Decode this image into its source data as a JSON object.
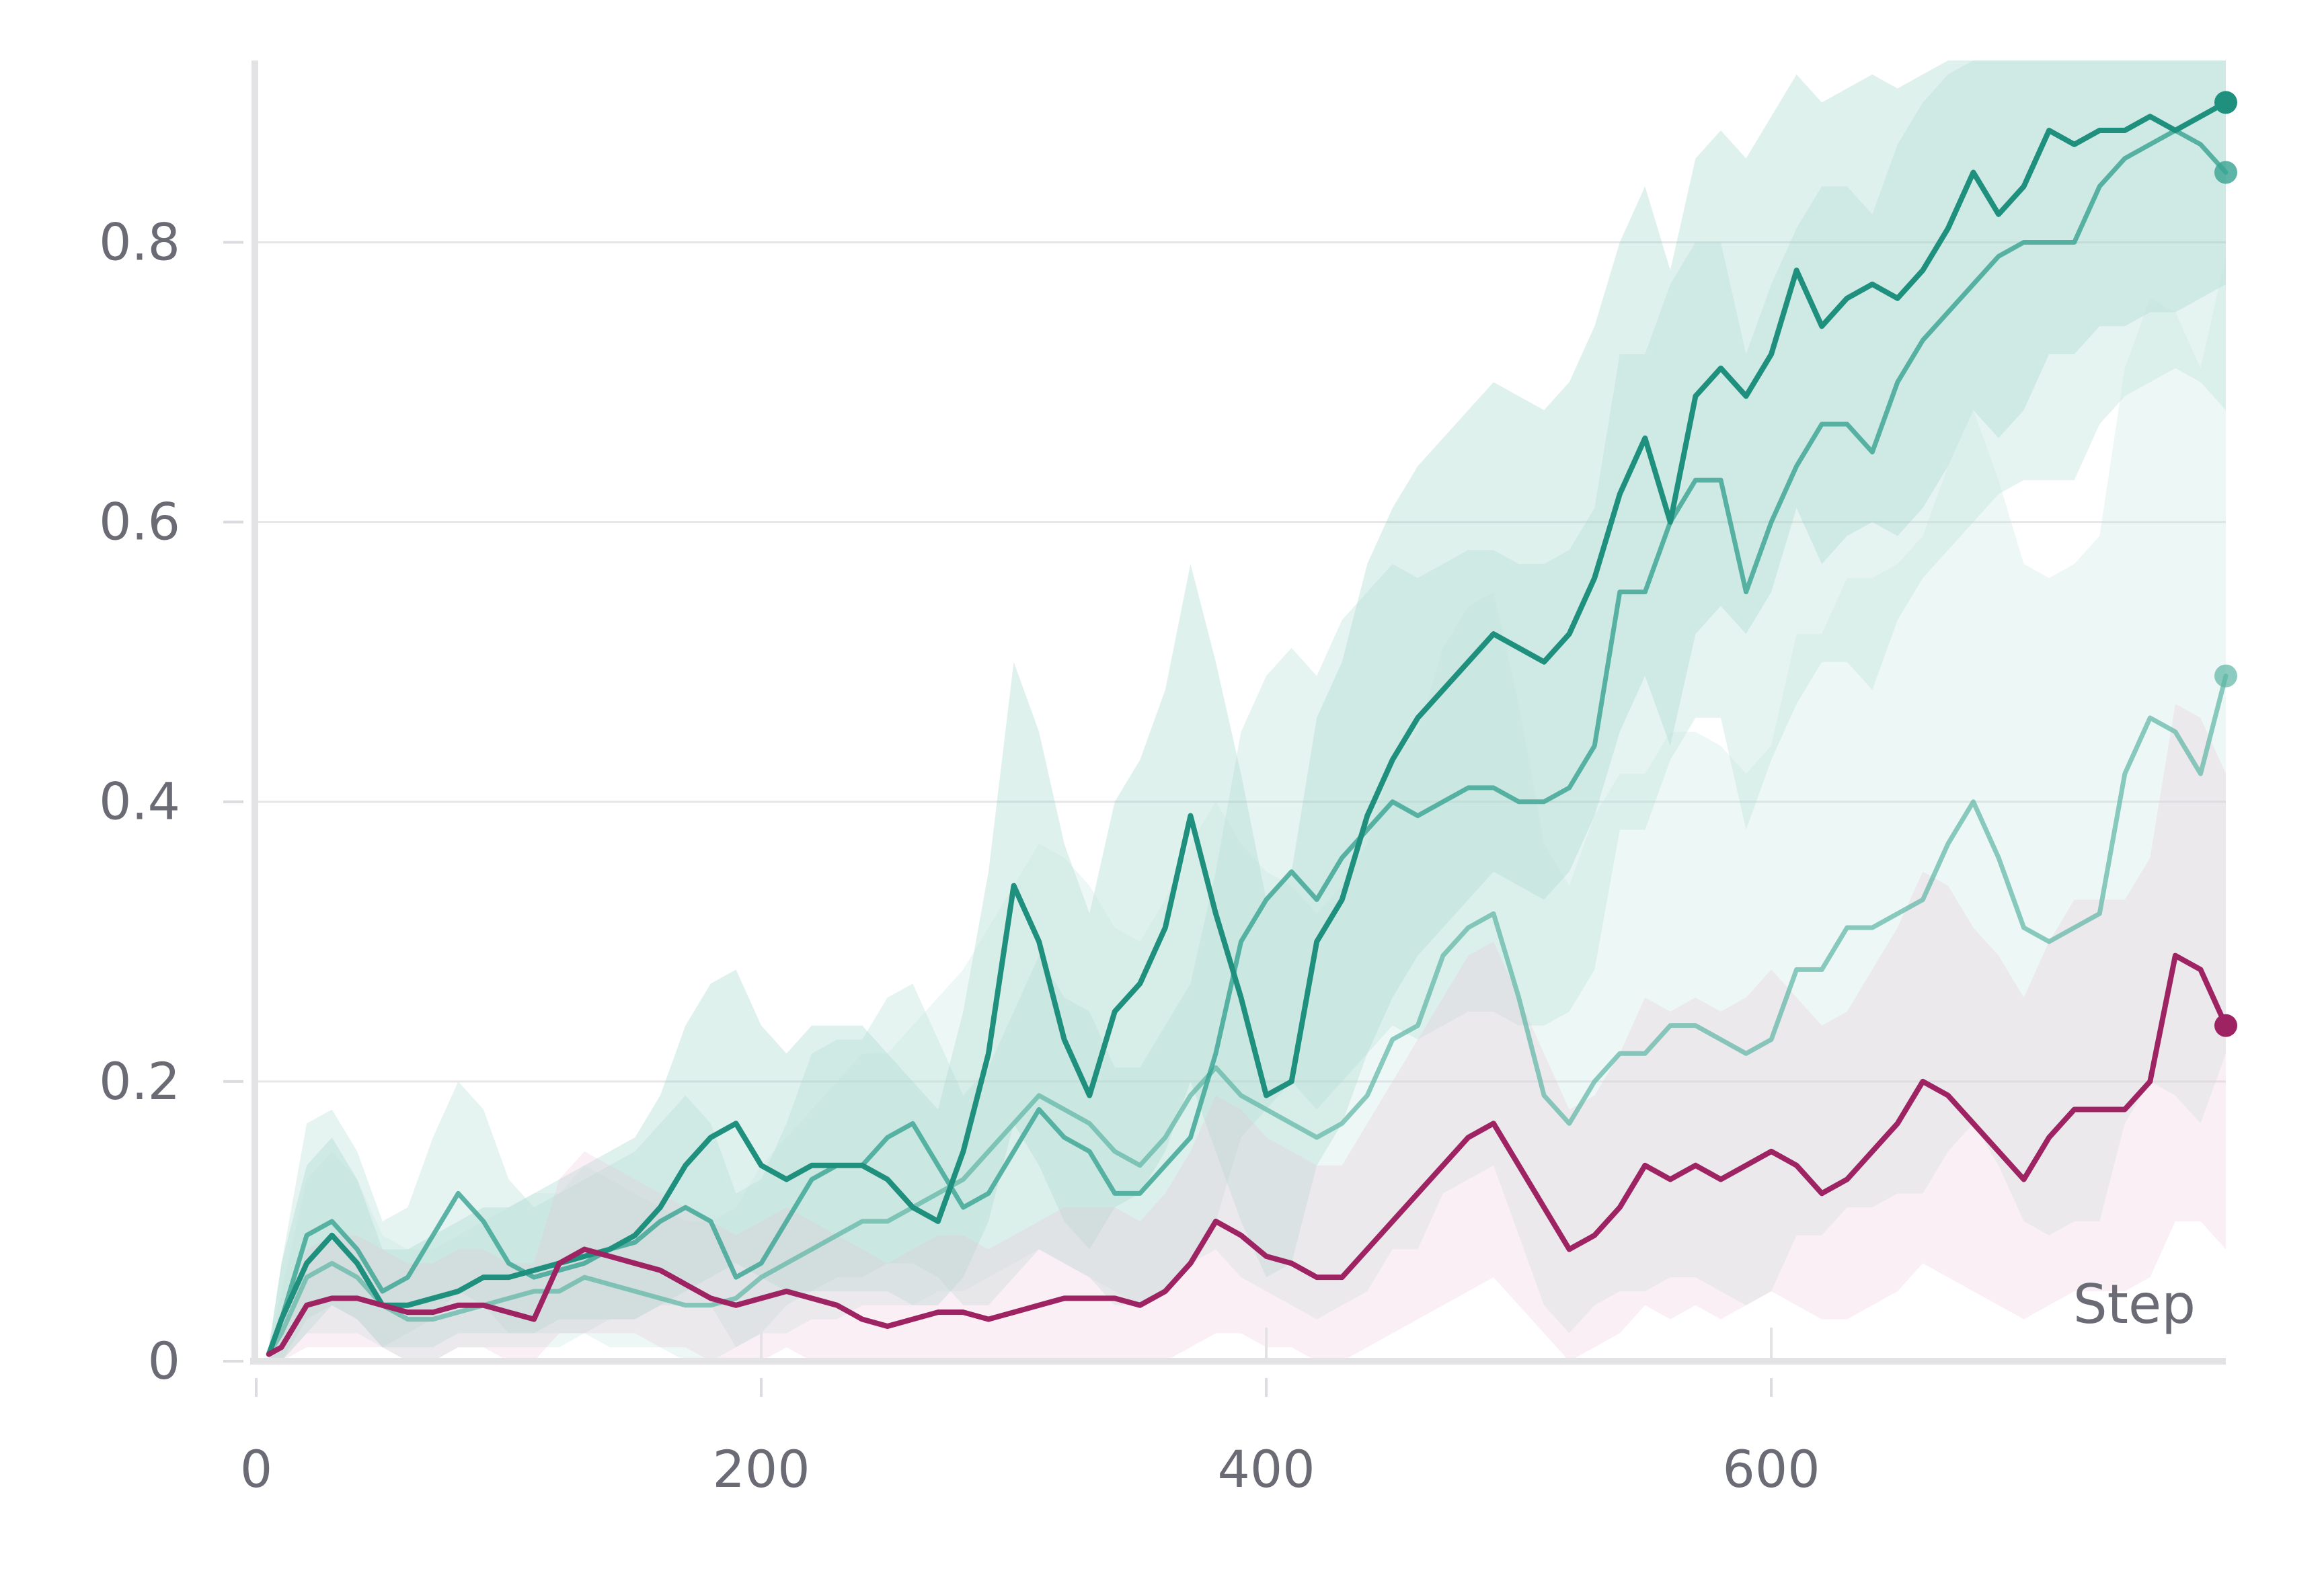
{
  "chart_data": {
    "type": "line",
    "title": "",
    "xlabel": "Step",
    "ylabel": "",
    "xlim": [
      0,
      780
    ],
    "ylim": [
      0,
      0.93
    ],
    "x_ticks": [
      0,
      200,
      400,
      600
    ],
    "x_tick_labels": [
      "0",
      "200",
      "400",
      "600"
    ],
    "y_ticks": [
      0,
      0.2,
      0.4,
      0.6,
      0.8
    ],
    "y_tick_labels": [
      "0",
      "0.2",
      "0.4",
      "0.6",
      "0.8"
    ],
    "grid": "horizontal",
    "legend": "none",
    "x": [
      5,
      10,
      20,
      30,
      40,
      50,
      60,
      70,
      80,
      90,
      100,
      110,
      120,
      130,
      140,
      150,
      160,
      170,
      180,
      190,
      200,
      210,
      220,
      230,
      240,
      250,
      260,
      270,
      280,
      290,
      300,
      310,
      320,
      330,
      340,
      350,
      360,
      370,
      380,
      390,
      400,
      410,
      420,
      430,
      440,
      450,
      460,
      470,
      480,
      490,
      500,
      510,
      520,
      530,
      540,
      550,
      560,
      570,
      580,
      590,
      600,
      610,
      620,
      630,
      640,
      650,
      660,
      670,
      680,
      690,
      700,
      710,
      720,
      730,
      740,
      750,
      760,
      770,
      780
    ],
    "series": [
      {
        "color": "#1f8f7e",
        "opacity": 1.0,
        "values": [
          0.005,
          0.03,
          0.07,
          0.09,
          0.07,
          0.04,
          0.04,
          0.045,
          0.05,
          0.06,
          0.06,
          0.065,
          0.07,
          0.075,
          0.08,
          0.09,
          0.11,
          0.14,
          0.16,
          0.17,
          0.14,
          0.13,
          0.14,
          0.14,
          0.14,
          0.13,
          0.11,
          0.1,
          0.15,
          0.22,
          0.34,
          0.3,
          0.23,
          0.19,
          0.25,
          0.27,
          0.31,
          0.39,
          0.32,
          0.26,
          0.19,
          0.2,
          0.3,
          0.33,
          0.39,
          0.43,
          0.46,
          0.48,
          0.5,
          0.52,
          0.51,
          0.5,
          0.52,
          0.56,
          0.62,
          0.66,
          0.6,
          0.69,
          0.71,
          0.69,
          0.72,
          0.78,
          0.74,
          0.76,
          0.77,
          0.76,
          0.78,
          0.81,
          0.85,
          0.82,
          0.84,
          0.88,
          0.87,
          0.88,
          0.88,
          0.89,
          0.88,
          0.89,
          0.9
        ]
      },
      {
        "color": "#3aa594",
        "opacity": 0.82,
        "values": [
          0.005,
          0.03,
          0.09,
          0.1,
          0.08,
          0.05,
          0.06,
          0.09,
          0.12,
          0.1,
          0.07,
          0.06,
          0.065,
          0.07,
          0.08,
          0.085,
          0.1,
          0.11,
          0.1,
          0.06,
          0.07,
          0.1,
          0.13,
          0.14,
          0.14,
          0.16,
          0.17,
          0.14,
          0.11,
          0.12,
          0.15,
          0.18,
          0.16,
          0.15,
          0.12,
          0.12,
          0.14,
          0.16,
          0.22,
          0.3,
          0.33,
          0.35,
          0.33,
          0.36,
          0.38,
          0.4,
          0.39,
          0.4,
          0.41,
          0.41,
          0.4,
          0.4,
          0.41,
          0.44,
          0.55,
          0.55,
          0.6,
          0.63,
          0.63,
          0.55,
          0.6,
          0.64,
          0.67,
          0.67,
          0.65,
          0.7,
          0.73,
          0.75,
          0.77,
          0.79,
          0.8,
          0.8,
          0.8,
          0.84,
          0.86,
          0.87,
          0.88,
          0.87,
          0.85
        ]
      },
      {
        "color": "#5db5a5",
        "opacity": 0.7,
        "values": [
          0.005,
          0.02,
          0.06,
          0.07,
          0.06,
          0.04,
          0.03,
          0.03,
          0.035,
          0.04,
          0.045,
          0.05,
          0.05,
          0.06,
          0.055,
          0.05,
          0.045,
          0.04,
          0.04,
          0.045,
          0.06,
          0.07,
          0.08,
          0.09,
          0.1,
          0.1,
          0.11,
          0.12,
          0.13,
          0.15,
          0.17,
          0.19,
          0.18,
          0.17,
          0.15,
          0.14,
          0.16,
          0.19,
          0.21,
          0.19,
          0.18,
          0.17,
          0.16,
          0.17,
          0.19,
          0.23,
          0.24,
          0.29,
          0.31,
          0.32,
          0.26,
          0.19,
          0.17,
          0.2,
          0.22,
          0.22,
          0.24,
          0.24,
          0.23,
          0.22,
          0.23,
          0.28,
          0.28,
          0.31,
          0.31,
          0.32,
          0.33,
          0.37,
          0.4,
          0.36,
          0.31,
          0.3,
          0.31,
          0.32,
          0.42,
          0.46,
          0.45,
          0.42,
          0.49
        ]
      },
      {
        "color": "#9e2363",
        "opacity": 1.0,
        "values": [
          0.005,
          0.01,
          0.04,
          0.045,
          0.045,
          0.04,
          0.035,
          0.035,
          0.04,
          0.04,
          0.035,
          0.03,
          0.07,
          0.08,
          0.075,
          0.07,
          0.065,
          0.055,
          0.045,
          0.04,
          0.045,
          0.05,
          0.045,
          0.04,
          0.03,
          0.025,
          0.03,
          0.035,
          0.035,
          0.03,
          0.035,
          0.04,
          0.045,
          0.045,
          0.045,
          0.04,
          0.05,
          0.07,
          0.1,
          0.09,
          0.075,
          0.07,
          0.06,
          0.06,
          0.08,
          0.1,
          0.12,
          0.14,
          0.16,
          0.17,
          0.14,
          0.11,
          0.08,
          0.09,
          0.11,
          0.14,
          0.13,
          0.14,
          0.13,
          0.14,
          0.15,
          0.14,
          0.12,
          0.13,
          0.15,
          0.17,
          0.2,
          0.19,
          0.17,
          0.15,
          0.13,
          0.16,
          0.18,
          0.18,
          0.18,
          0.2,
          0.29,
          0.28,
          0.24
        ]
      }
    ],
    "bands": [
      {
        "series_index": 0,
        "color": "#8ccdc0",
        "lower": [
          0.0,
          0.0,
          0.02,
          0.04,
          0.03,
          0.01,
          0.01,
          0.01,
          0.02,
          0.02,
          0.02,
          0.02,
          0.03,
          0.03,
          0.03,
          0.03,
          0.04,
          0.05,
          0.06,
          0.07,
          0.06,
          0.05,
          0.05,
          0.05,
          0.05,
          0.05,
          0.04,
          0.04,
          0.06,
          0.1,
          0.17,
          0.14,
          0.1,
          0.08,
          0.11,
          0.12,
          0.15,
          0.2,
          0.15,
          0.1,
          0.06,
          0.07,
          0.14,
          0.17,
          0.22,
          0.26,
          0.29,
          0.31,
          0.33,
          0.35,
          0.34,
          0.33,
          0.35,
          0.39,
          0.45,
          0.49,
          0.44,
          0.52,
          0.54,
          0.52,
          0.55,
          0.61,
          0.57,
          0.59,
          0.6,
          0.59,
          0.61,
          0.64,
          0.68,
          0.66,
          0.68,
          0.72,
          0.72,
          0.74,
          0.74,
          0.75,
          0.75,
          0.76,
          0.77
        ],
        "upper": [
          0.01,
          0.07,
          0.14,
          0.16,
          0.13,
          0.08,
          0.08,
          0.09,
          0.1,
          0.11,
          0.11,
          0.12,
          0.13,
          0.14,
          0.15,
          0.16,
          0.19,
          0.24,
          0.27,
          0.28,
          0.24,
          0.22,
          0.24,
          0.24,
          0.24,
          0.22,
          0.2,
          0.18,
          0.25,
          0.35,
          0.5,
          0.45,
          0.37,
          0.32,
          0.4,
          0.43,
          0.48,
          0.57,
          0.5,
          0.42,
          0.33,
          0.35,
          0.46,
          0.5,
          0.57,
          0.61,
          0.64,
          0.66,
          0.68,
          0.7,
          0.69,
          0.68,
          0.7,
          0.74,
          0.8,
          0.84,
          0.78,
          0.86,
          0.88,
          0.86,
          0.89,
          0.92,
          0.9,
          0.91,
          0.92,
          0.91,
          0.92,
          0.93,
          0.93,
          0.93,
          0.93,
          0.93,
          0.93,
          0.93,
          0.93,
          0.93,
          0.93,
          0.93,
          0.93
        ]
      },
      {
        "series_index": 1,
        "color": "#a6d8ce",
        "lower": [
          0.0,
          0.0,
          0.03,
          0.04,
          0.03,
          0.01,
          0.02,
          0.03,
          0.05,
          0.04,
          0.02,
          0.02,
          0.02,
          0.02,
          0.03,
          0.03,
          0.04,
          0.04,
          0.04,
          0.01,
          0.02,
          0.04,
          0.05,
          0.06,
          0.06,
          0.07,
          0.07,
          0.06,
          0.04,
          0.04,
          0.06,
          0.08,
          0.07,
          0.06,
          0.04,
          0.04,
          0.05,
          0.07,
          0.1,
          0.16,
          0.18,
          0.2,
          0.18,
          0.2,
          0.22,
          0.24,
          0.23,
          0.24,
          0.25,
          0.25,
          0.24,
          0.24,
          0.25,
          0.28,
          0.38,
          0.38,
          0.43,
          0.46,
          0.46,
          0.38,
          0.43,
          0.47,
          0.5,
          0.5,
          0.48,
          0.53,
          0.56,
          0.58,
          0.6,
          0.62,
          0.63,
          0.63,
          0.63,
          0.67,
          0.69,
          0.7,
          0.71,
          0.7,
          0.68
        ],
        "upper": [
          0.01,
          0.07,
          0.17,
          0.18,
          0.15,
          0.1,
          0.11,
          0.16,
          0.2,
          0.18,
          0.13,
          0.11,
          0.12,
          0.13,
          0.14,
          0.15,
          0.17,
          0.19,
          0.17,
          0.12,
          0.13,
          0.17,
          0.22,
          0.23,
          0.23,
          0.26,
          0.27,
          0.23,
          0.19,
          0.21,
          0.25,
          0.29,
          0.26,
          0.25,
          0.21,
          0.21,
          0.24,
          0.27,
          0.35,
          0.45,
          0.49,
          0.51,
          0.49,
          0.53,
          0.55,
          0.57,
          0.56,
          0.57,
          0.58,
          0.58,
          0.57,
          0.57,
          0.58,
          0.61,
          0.72,
          0.72,
          0.77,
          0.8,
          0.8,
          0.72,
          0.77,
          0.81,
          0.84,
          0.84,
          0.82,
          0.87,
          0.9,
          0.92,
          0.93,
          0.93,
          0.93,
          0.93,
          0.93,
          0.93,
          0.93,
          0.93,
          0.93,
          0.93,
          0.93
        ]
      },
      {
        "series_index": 2,
        "color": "#bfe3dc",
        "lower": [
          0.0,
          0.0,
          0.02,
          0.02,
          0.02,
          0.01,
          0.0,
          0.0,
          0.01,
          0.01,
          0.01,
          0.01,
          0.01,
          0.02,
          0.01,
          0.01,
          0.01,
          0.0,
          0.0,
          0.01,
          0.02,
          0.02,
          0.03,
          0.03,
          0.04,
          0.04,
          0.04,
          0.05,
          0.05,
          0.06,
          0.07,
          0.08,
          0.07,
          0.06,
          0.05,
          0.04,
          0.05,
          0.07,
          0.08,
          0.06,
          0.05,
          0.04,
          0.03,
          0.04,
          0.05,
          0.08,
          0.08,
          0.12,
          0.13,
          0.14,
          0.09,
          0.04,
          0.02,
          0.04,
          0.05,
          0.05,
          0.06,
          0.06,
          0.05,
          0.04,
          0.05,
          0.09,
          0.09,
          0.11,
          0.11,
          0.12,
          0.12,
          0.15,
          0.17,
          0.14,
          0.1,
          0.09,
          0.1,
          0.1,
          0.17,
          0.2,
          0.19,
          0.17,
          0.22
        ],
        "upper": [
          0.01,
          0.05,
          0.13,
          0.15,
          0.13,
          0.09,
          0.08,
          0.08,
          0.09,
          0.1,
          0.11,
          0.12,
          0.12,
          0.14,
          0.13,
          0.12,
          0.11,
          0.1,
          0.1,
          0.11,
          0.14,
          0.16,
          0.18,
          0.2,
          0.22,
          0.22,
          0.24,
          0.26,
          0.28,
          0.31,
          0.34,
          0.37,
          0.36,
          0.34,
          0.31,
          0.3,
          0.33,
          0.37,
          0.4,
          0.37,
          0.35,
          0.34,
          0.32,
          0.34,
          0.37,
          0.43,
          0.45,
          0.51,
          0.54,
          0.55,
          0.47,
          0.37,
          0.34,
          0.39,
          0.42,
          0.42,
          0.45,
          0.45,
          0.44,
          0.42,
          0.44,
          0.52,
          0.52,
          0.56,
          0.56,
          0.57,
          0.59,
          0.64,
          0.68,
          0.63,
          0.57,
          0.56,
          0.57,
          0.59,
          0.71,
          0.76,
          0.75,
          0.71,
          0.79
        ]
      },
      {
        "series_index": 3,
        "color": "#e8c6d8",
        "lower": [
          0.0,
          0.0,
          0.01,
          0.01,
          0.01,
          0.01,
          0.0,
          0.0,
          0.01,
          0.01,
          0.0,
          0.0,
          0.02,
          0.02,
          0.02,
          0.02,
          0.01,
          0.01,
          0.0,
          0.0,
          0.0,
          0.01,
          0.0,
          0.0,
          0.0,
          0.0,
          0.0,
          0.0,
          0.0,
          0.0,
          0.0,
          0.0,
          0.0,
          0.0,
          0.0,
          0.0,
          0.0,
          0.01,
          0.02,
          0.02,
          0.01,
          0.01,
          0.0,
          0.0,
          0.01,
          0.02,
          0.03,
          0.04,
          0.05,
          0.06,
          0.04,
          0.02,
          0.0,
          0.01,
          0.02,
          0.04,
          0.03,
          0.04,
          0.03,
          0.04,
          0.05,
          0.04,
          0.03,
          0.03,
          0.04,
          0.05,
          0.07,
          0.06,
          0.05,
          0.04,
          0.03,
          0.04,
          0.05,
          0.05,
          0.05,
          0.06,
          0.1,
          0.1,
          0.08
        ],
        "upper": [
          0.01,
          0.03,
          0.08,
          0.09,
          0.09,
          0.08,
          0.07,
          0.07,
          0.08,
          0.08,
          0.07,
          0.07,
          0.13,
          0.15,
          0.14,
          0.13,
          0.12,
          0.11,
          0.1,
          0.09,
          0.1,
          0.11,
          0.1,
          0.09,
          0.08,
          0.07,
          0.08,
          0.09,
          0.09,
          0.08,
          0.09,
          0.1,
          0.11,
          0.11,
          0.11,
          0.1,
          0.12,
          0.15,
          0.19,
          0.18,
          0.16,
          0.15,
          0.14,
          0.14,
          0.17,
          0.2,
          0.23,
          0.26,
          0.29,
          0.3,
          0.26,
          0.22,
          0.18,
          0.19,
          0.22,
          0.26,
          0.25,
          0.26,
          0.25,
          0.26,
          0.28,
          0.26,
          0.24,
          0.25,
          0.28,
          0.31,
          0.35,
          0.34,
          0.31,
          0.29,
          0.26,
          0.3,
          0.33,
          0.33,
          0.33,
          0.36,
          0.47,
          0.46,
          0.42
        ]
      }
    ],
    "end_markers": true
  }
}
